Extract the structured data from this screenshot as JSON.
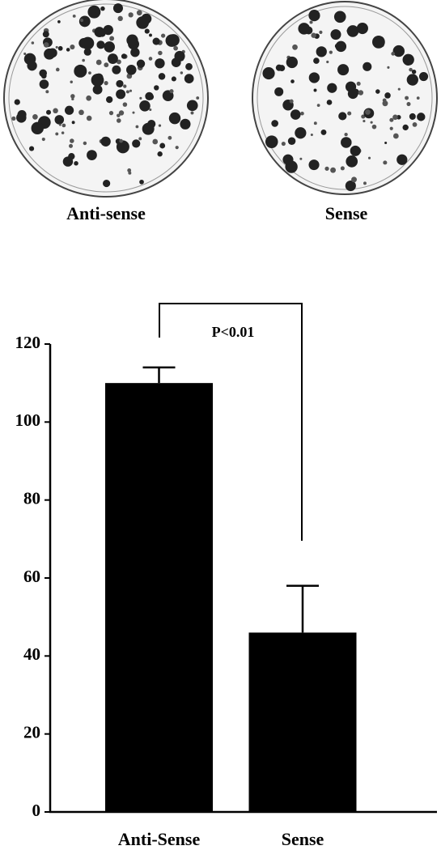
{
  "panels": [
    {
      "label": "Anti-sense"
    },
    {
      "label": "Sense"
    }
  ],
  "chart_data": {
    "type": "bar",
    "categories": [
      "Anti-Sense",
      "Sense"
    ],
    "values": [
      110,
      46
    ],
    "errors": [
      4,
      12
    ],
    "color": "#000000",
    "annotation": "P<0.01",
    "ylim": [
      0,
      120
    ],
    "yticks": [
      0,
      20,
      40,
      60,
      80,
      100,
      120
    ]
  }
}
